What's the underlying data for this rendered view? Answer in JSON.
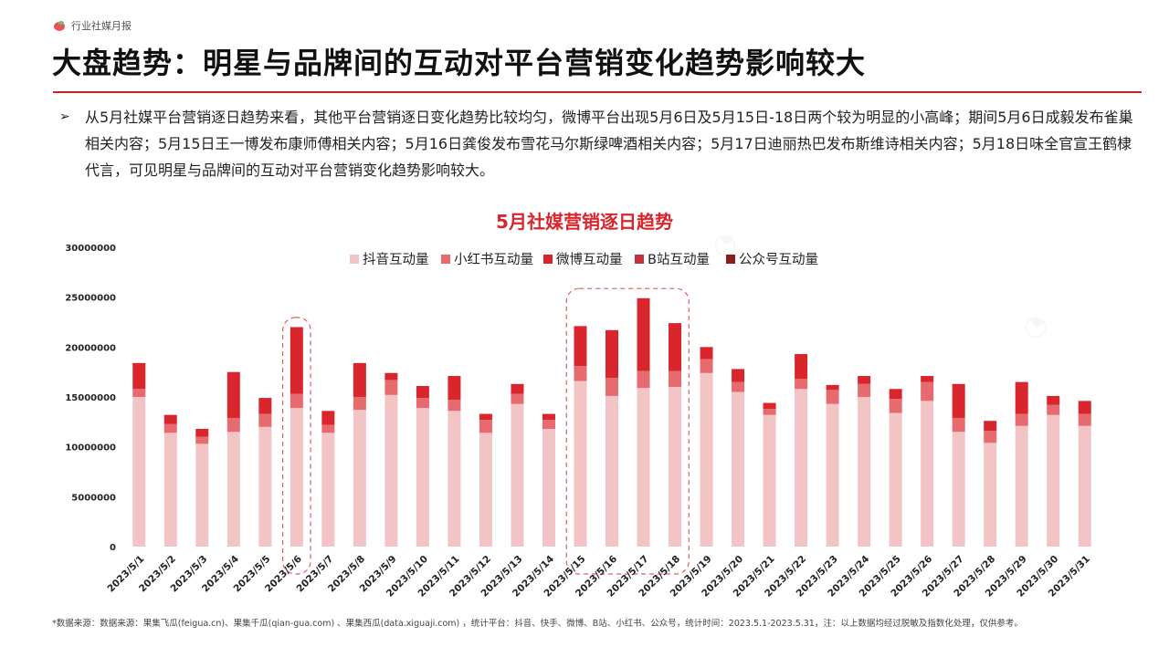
{
  "header": {
    "brand": "行业社媒月报",
    "title": "大盘趋势：明星与品牌间的互动对平台营销变化趋势影响较大"
  },
  "summary": {
    "bullet": "➢",
    "text": "从5月社媒平台营销逐日趋势来看，其他平台营销逐日变化趋势比较均匀，微博平台出现5月6日及5月15日-18日两个较为明显的小高峰；期间5月6日成毅发布雀巢相关内容；5月15日王一博发布康师傅相关内容；5月16日龚俊发布雪花马尔斯绿啤酒相关内容；5月17日迪丽热巴发布斯维诗相关内容；5月18日味全官宣王鹤棣代言，可见明星与品牌间的互动对平台营销变化趋势影响较大。"
  },
  "footnote": "*数据来源：数据来源：果集飞瓜(feigua.cn)、果集千瓜(qian-gua.com) 、果集西瓜(data.xiguaji.com) ，统计平台：抖音、快手、微博、B站、小红书、公众号，统计时间：2023.5.1-2023.5.31，注：以上数据均经过脱敏及指数化处理，仅供参考。",
  "colors": {
    "douyin": "#f3c4c6",
    "xiaohongshu": "#e66a6e",
    "weibo": "#d9262d",
    "bilibili": "#c4313a",
    "gongzhonghao": "#8c1c22",
    "title_red": "#d9262d",
    "highlight_box": "#e25a5f"
  },
  "chart_data": {
    "type": "bar",
    "stacked": true,
    "title": "5月社媒营销逐日趋势",
    "xlabel": "",
    "ylabel": "",
    "ylim": [
      0,
      30000000
    ],
    "yticks": [
      "0",
      "5000000",
      "10000000",
      "15000000",
      "20000000",
      "25000000",
      "30000000"
    ],
    "grid": false,
    "legend_position": "top-center",
    "categories": [
      "2023/5/1",
      "2023/5/2",
      "2023/5/3",
      "2023/5/4",
      "2023/5/5",
      "2023/5/6",
      "2023/5/7",
      "2023/5/8",
      "2023/5/9",
      "2023/5/10",
      "2023/5/11",
      "2023/5/12",
      "2023/5/13",
      "2023/5/14",
      "2023/5/15",
      "2023/5/16",
      "2023/5/17",
      "2023/5/18",
      "2023/5/19",
      "2023/5/20",
      "2023/5/21",
      "2023/5/22",
      "2023/5/23",
      "2023/5/24",
      "2023/5/25",
      "2023/5/26",
      "2023/5/27",
      "2023/5/28",
      "2023/5/29",
      "2023/5/30",
      "2023/5/31"
    ],
    "series": [
      {
        "name": "抖音互动量",
        "color_key": "douyin",
        "values": [
          15000000,
          11400000,
          10300000,
          11500000,
          12000000,
          13900000,
          11400000,
          13700000,
          15200000,
          13900000,
          13600000,
          11400000,
          14300000,
          11800000,
          16600000,
          15100000,
          15900000,
          16000000,
          17400000,
          15500000,
          13200000,
          15800000,
          14300000,
          15000000,
          13400000,
          14600000,
          11500000,
          10400000,
          12100000,
          13200000,
          12100000
        ]
      },
      {
        "name": "小红书互动量",
        "color_key": "xiaohongshu",
        "values": [
          800000,
          900000,
          700000,
          1400000,
          1300000,
          1400000,
          800000,
          1300000,
          1500000,
          1000000,
          1100000,
          1300000,
          1000000,
          900000,
          1500000,
          1800000,
          1700000,
          1600000,
          1400000,
          1000000,
          600000,
          1000000,
          1400000,
          1300000,
          1400000,
          1900000,
          1400000,
          1200000,
          1200000,
          1000000,
          1200000
        ]
      },
      {
        "name": "微博互动量",
        "color_key": "weibo",
        "values": [
          2600000,
          900000,
          800000,
          4600000,
          1600000,
          6700000,
          1400000,
          3400000,
          700000,
          1200000,
          2400000,
          600000,
          1000000,
          600000,
          4000000,
          4800000,
          7300000,
          4800000,
          1200000,
          1300000,
          600000,
          2500000,
          500000,
          800000,
          1000000,
          600000,
          3400000,
          1000000,
          3200000,
          900000,
          1300000
        ]
      },
      {
        "name": "B站互动量",
        "color_key": "bilibili",
        "values": [
          0,
          0,
          0,
          0,
          0,
          0,
          0,
          0,
          0,
          0,
          0,
          0,
          0,
          0,
          0,
          0,
          0,
          0,
          0,
          0,
          0,
          0,
          0,
          0,
          0,
          0,
          0,
          0,
          0,
          0,
          0
        ]
      },
      {
        "name": "公众号互动量",
        "color_key": "gongzhonghao",
        "values": [
          0,
          0,
          0,
          0,
          0,
          0,
          0,
          0,
          0,
          0,
          0,
          0,
          0,
          0,
          0,
          0,
          0,
          0,
          0,
          0,
          0,
          0,
          0,
          0,
          0,
          0,
          0,
          0,
          0,
          0,
          0
        ]
      }
    ],
    "highlights": [
      {
        "from": "2023/5/6",
        "to": "2023/5/6",
        "max_value": 22600000
      },
      {
        "from": "2023/5/15",
        "to": "2023/5/18",
        "max_value": 25500000
      }
    ]
  }
}
